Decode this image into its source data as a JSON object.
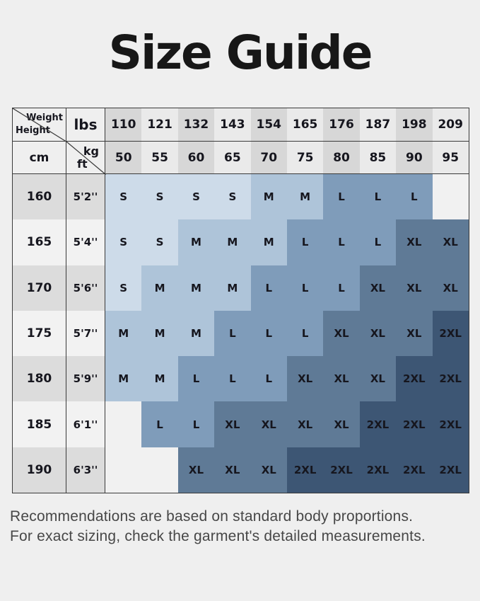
{
  "page": {
    "title": "Size Guide",
    "background": "#efefef",
    "footer": {
      "line1": "Recommendations are based on standard body proportions.",
      "line2": "For exact sizing, check the garment's detailed measurements."
    }
  },
  "table": {
    "corner": {
      "weight_label": "Weight",
      "height_label": "Height",
      "lbs_label": "lbs",
      "cm_label": "cm",
      "kg_label": "kg",
      "ft_label": "ft"
    },
    "lbs_values": [
      "110",
      "121",
      "132",
      "143",
      "154",
      "165",
      "176",
      "187",
      "198",
      "209"
    ],
    "kg_values": [
      "50",
      "55",
      "60",
      "65",
      "70",
      "75",
      "80",
      "85",
      "90",
      "95"
    ],
    "rows": [
      {
        "cm": "160",
        "ft": "5'2''",
        "sizes": [
          "S",
          "S",
          "S",
          "S",
          "M",
          "M",
          "L",
          "L",
          "L",
          ""
        ]
      },
      {
        "cm": "165",
        "ft": "5'4''",
        "sizes": [
          "S",
          "S",
          "M",
          "M",
          "M",
          "L",
          "L",
          "L",
          "XL",
          "XL"
        ]
      },
      {
        "cm": "170",
        "ft": "5'6''",
        "sizes": [
          "S",
          "M",
          "M",
          "M",
          "L",
          "L",
          "L",
          "XL",
          "XL",
          "XL"
        ]
      },
      {
        "cm": "175",
        "ft": "5'7''",
        "sizes": [
          "M",
          "M",
          "M",
          "L",
          "L",
          "L",
          "XL",
          "XL",
          "XL",
          "2XL"
        ]
      },
      {
        "cm": "180",
        "ft": "5'9''",
        "sizes": [
          "M",
          "M",
          "L",
          "L",
          "L",
          "XL",
          "XL",
          "XL",
          "2XL",
          "2XL"
        ]
      },
      {
        "cm": "185",
        "ft": "6'1''",
        "sizes": [
          "",
          "L",
          "L",
          "XL",
          "XL",
          "XL",
          "XL",
          "2XL",
          "2XL",
          "2XL"
        ]
      },
      {
        "cm": "190",
        "ft": "6'3''",
        "sizes": [
          "",
          "",
          "XL",
          "XL",
          "XL",
          "2XL",
          "2XL",
          "2XL",
          "2XL",
          "2XL"
        ]
      }
    ],
    "size_colors": {
      "S": "#cddbe9",
      "M": "#aec4d9",
      "L": "#7f9cba",
      "XL": "#5f7a96",
      "2XL": "#3d5674"
    },
    "header_col_dark": "#d7d7d7",
    "header_col_light": "#eaeaea",
    "height_row_dark": "#dcdcdc",
    "height_row_light": "#f2f2f2",
    "empty_cell": "#f1f1f1",
    "border_color": "#3a3a3a"
  },
  "chart_data": {
    "type": "heatmap",
    "title": "Size Guide",
    "x_axis_label": "Weight",
    "y_axis_label": "Height",
    "x_units": [
      "lbs",
      "kg"
    ],
    "y_units": [
      "cm",
      "ft"
    ],
    "columns_lbs": [
      110,
      121,
      132,
      143,
      154,
      165,
      176,
      187,
      198,
      209
    ],
    "columns_kg": [
      50,
      55,
      60,
      65,
      70,
      75,
      80,
      85,
      90,
      95
    ],
    "rows_cm": [
      160,
      165,
      170,
      175,
      180,
      185,
      190
    ],
    "rows_ft": [
      "5'2''",
      "5'4''",
      "5'6''",
      "5'7''",
      "5'9''",
      "6'1''",
      "6'3''"
    ],
    "matrix": [
      [
        "S",
        "S",
        "S",
        "S",
        "M",
        "M",
        "L",
        "L",
        "L",
        null
      ],
      [
        "S",
        "S",
        "M",
        "M",
        "M",
        "L",
        "L",
        "L",
        "XL",
        "XL"
      ],
      [
        "S",
        "M",
        "M",
        "M",
        "L",
        "L",
        "L",
        "XL",
        "XL",
        "XL"
      ],
      [
        "M",
        "M",
        "M",
        "L",
        "L",
        "L",
        "XL",
        "XL",
        "XL",
        "2XL"
      ],
      [
        "M",
        "M",
        "L",
        "L",
        "L",
        "XL",
        "XL",
        "XL",
        "2XL",
        "2XL"
      ],
      [
        null,
        "L",
        "L",
        "XL",
        "XL",
        "XL",
        "XL",
        "2XL",
        "2XL",
        "2XL"
      ],
      [
        null,
        null,
        "XL",
        "XL",
        "XL",
        "2XL",
        "2XL",
        "2XL",
        "2XL",
        "2XL"
      ]
    ],
    "legend": {
      "S": "#cddbe9",
      "M": "#aec4d9",
      "L": "#7f9cba",
      "XL": "#5f7a96",
      "2XL": "#3d5674"
    },
    "annotations": [
      "Recommendations are based on standard body proportions.",
      "For exact sizing, check the garment's detailed measurements."
    ]
  }
}
